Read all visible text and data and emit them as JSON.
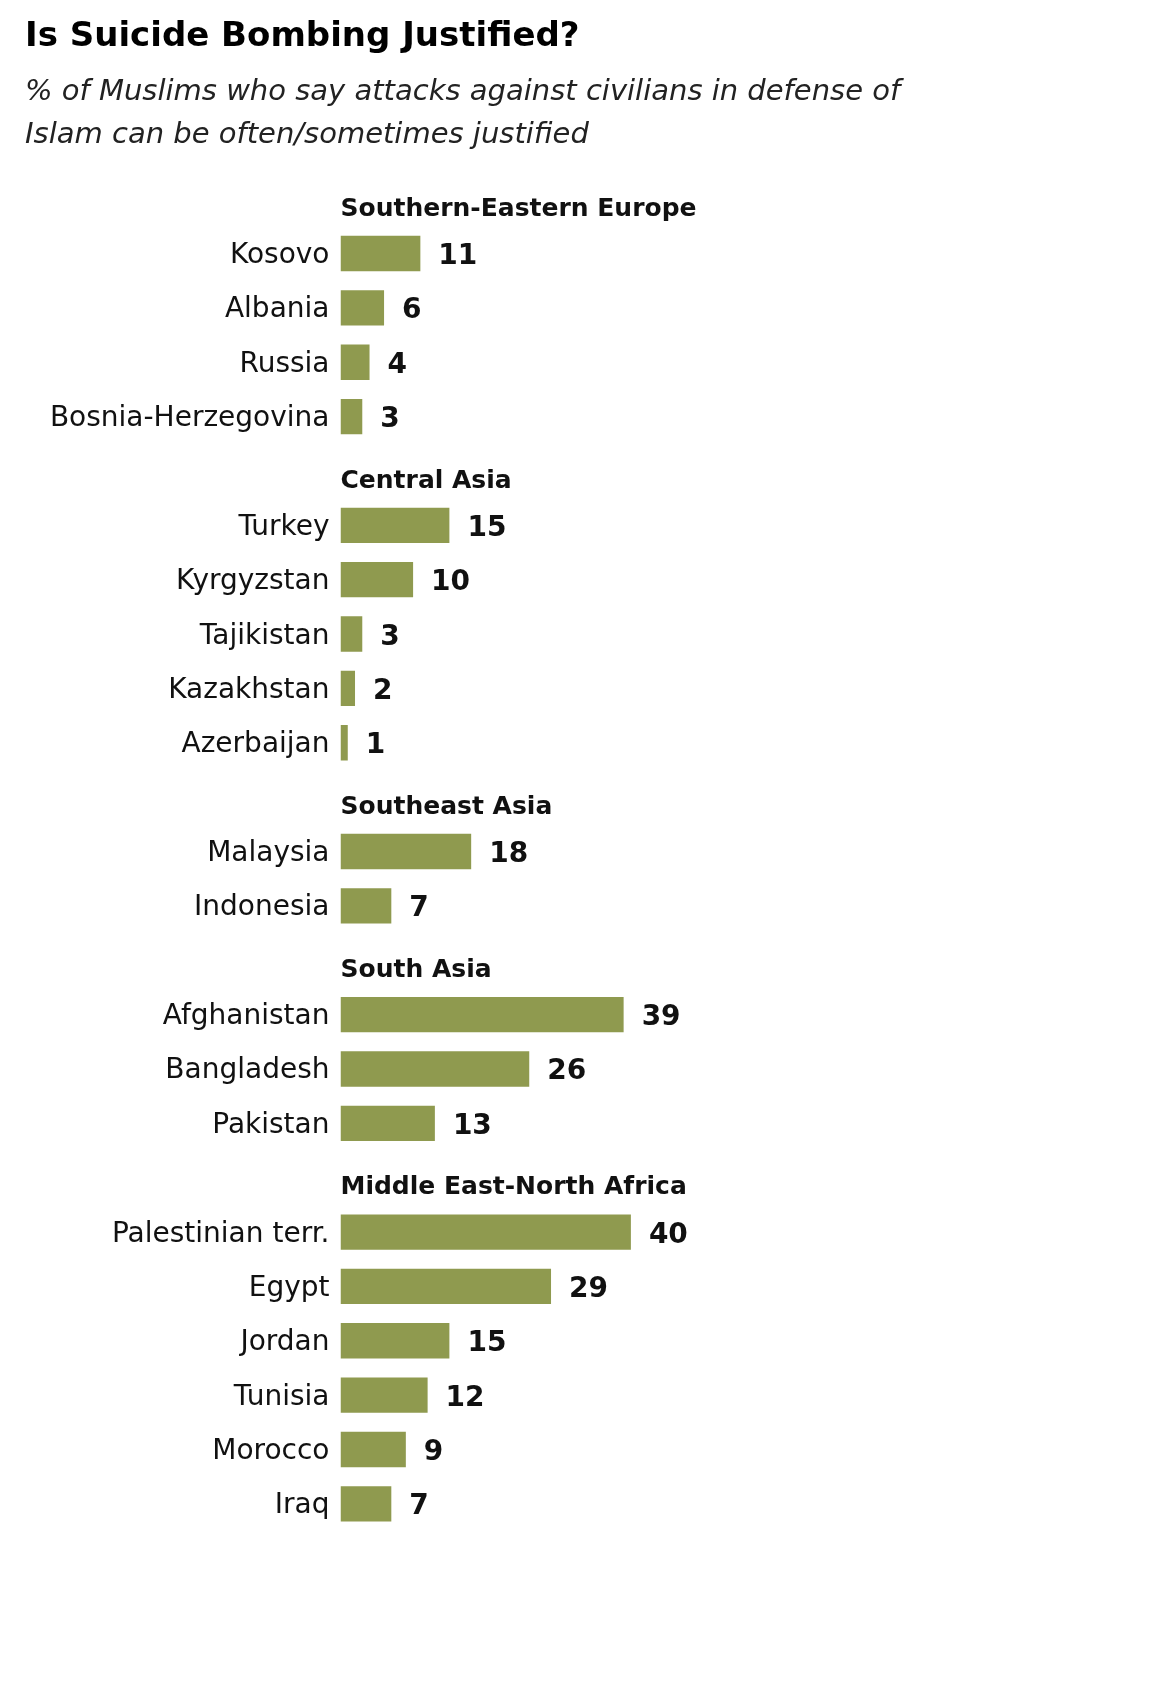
{
  "chart_data": {
    "type": "bar",
    "orientation": "horizontal",
    "title": "Is Suicide Bombing Justified?",
    "subtitle": "% of Muslims who say attacks against civilians in defense of Islam can be often/sometimes justified",
    "categories": [
      null,
      "Kosovo",
      "Albania",
      "Russia",
      "Bosnia-Herzegovina",
      null,
      "Turkey",
      "Kyrgyzstan",
      "Tajikistan",
      "Kazakhstan",
      "Azerbaijan",
      null,
      "Malaysia",
      "Indonesia",
      null,
      "Afghanistan",
      "Bangladesh",
      "Pakistan",
      null,
      "Palestinian terr.",
      "Egypt",
      "Jordan",
      "Tunisia",
      "Morocco",
      "Iraq"
    ],
    "values": [
      null,
      11,
      6,
      4,
      3,
      null,
      15,
      10,
      3,
      2,
      1,
      null,
      18,
      7,
      null,
      39,
      26,
      13,
      null,
      40,
      29,
      15,
      12,
      9,
      7
    ],
    "color": "#8f9a4f",
    "annotations": [
      "Southern-Eastern Europe",
      "Central Asia",
      "Southeast Asia",
      "South Asia",
      "Middle East-North Africa"
    ],
    "data_labels": true,
    "grid": false
  }
}
